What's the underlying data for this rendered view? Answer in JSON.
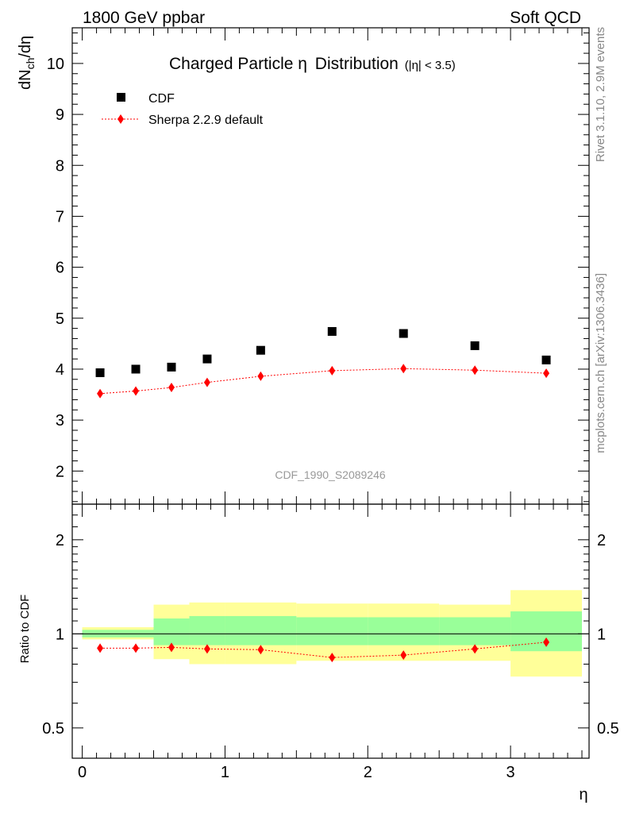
{
  "header": {
    "left_label": "1800 GeV ppbar",
    "right_label": "Soft QCD"
  },
  "side_labels": {
    "rivet": "Rivet 3.1.10,  2.9M events",
    "mcplots": "mcplots.cern.ch [arXiv:1306.3436]"
  },
  "chart_data": [
    {
      "type": "scatter",
      "panel": "main",
      "title": "Charged Particle",
      "title_symbol": "η",
      "title_tail": "Distribution",
      "title_cut": "(|η| < 3.5)",
      "ylabel": "dN",
      "ylabel_sub": "ch",
      "ylabel_tail": "/dη",
      "watermark": "CDF_1990_S2089246",
      "ylim": [
        1.35,
        10.7
      ],
      "xlim": [
        -0.07,
        3.55
      ],
      "y_ticks": [
        2,
        3,
        4,
        5,
        6,
        7,
        8,
        9,
        10
      ],
      "legend_position": "top-left",
      "series": [
        {
          "name": "CDF",
          "color": "#000000",
          "marker": "square",
          "x": [
            0.125,
            0.375,
            0.625,
            0.875,
            1.25,
            1.75,
            2.25,
            2.75,
            3.25
          ],
          "y": [
            3.93,
            4.0,
            4.04,
            4.2,
            4.37,
            4.74,
            4.7,
            4.46,
            4.18
          ]
        },
        {
          "name": "Sherpa 2.2.9 default",
          "color": "#ff0000",
          "marker": "diamond",
          "line": "dotted",
          "x": [
            0.125,
            0.375,
            0.625,
            0.875,
            1.25,
            1.75,
            2.25,
            2.75,
            3.25
          ],
          "y": [
            3.52,
            3.57,
            3.64,
            3.74,
            3.86,
            3.97,
            4.01,
            3.98,
            3.92
          ]
        }
      ]
    },
    {
      "type": "scatter",
      "panel": "ratio",
      "ylabel": "Ratio to CDF",
      "xlabel": "η",
      "ylim": [
        0.4,
        2.6
      ],
      "scale": "log",
      "xlim": [
        -0.07,
        3.55
      ],
      "x_ticks": [
        0,
        1,
        2,
        3
      ],
      "y_ticks": [
        0.5,
        1,
        2
      ],
      "reference_line": 1,
      "bands": [
        {
          "x0": 0.0,
          "x1": 0.5,
          "inner": [
            0.975,
            1.025
          ],
          "outer": [
            0.965,
            1.04
          ]
        },
        {
          "x0": 0.0,
          "x1": 0.5,
          "inner": [
            0.975,
            1.03
          ],
          "outer": [
            0.96,
            1.05
          ]
        },
        {
          "x0": 0.5,
          "x1": 0.75,
          "inner": [
            0.92,
            1.12
          ],
          "outer": [
            0.83,
            1.24
          ]
        },
        {
          "x0": 0.75,
          "x1": 1.0,
          "inner": [
            0.92,
            1.14
          ],
          "outer": [
            0.8,
            1.26
          ]
        },
        {
          "x0": 1.0,
          "x1": 1.5,
          "inner": [
            0.92,
            1.14
          ],
          "outer": [
            0.8,
            1.26
          ]
        },
        {
          "x0": 1.5,
          "x1": 2.0,
          "inner": [
            0.92,
            1.13
          ],
          "outer": [
            0.82,
            1.25
          ]
        },
        {
          "x0": 2.0,
          "x1": 2.5,
          "inner": [
            0.92,
            1.13
          ],
          "outer": [
            0.82,
            1.25
          ]
        },
        {
          "x0": 2.5,
          "x1": 3.0,
          "inner": [
            0.92,
            1.13
          ],
          "outer": [
            0.82,
            1.24
          ]
        },
        {
          "x0": 3.0,
          "x1": 3.5,
          "inner": [
            0.88,
            1.18
          ],
          "outer": [
            0.73,
            1.38
          ]
        }
      ],
      "band_colors": {
        "inner": "#99ff99",
        "outer": "#ffff99"
      },
      "series": [
        {
          "name": "Sherpa 2.2.9 default",
          "color": "#ff0000",
          "marker": "diamond",
          "line": "dotted",
          "x": [
            0.125,
            0.375,
            0.625,
            0.875,
            1.25,
            1.75,
            2.25,
            2.75,
            3.25
          ],
          "y": [
            0.9,
            0.9,
            0.905,
            0.895,
            0.89,
            0.84,
            0.855,
            0.895,
            0.94
          ]
        }
      ]
    }
  ]
}
